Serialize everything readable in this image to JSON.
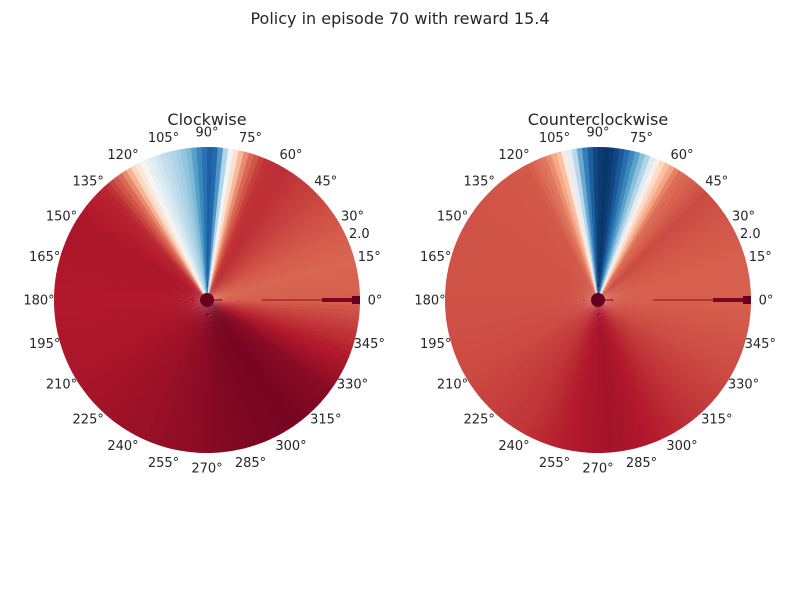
{
  "figure_title": "Policy in episode 70 with reward 15.4",
  "colormap": "RdBu",
  "chart_data": [
    {
      "type": "heatmap",
      "projection": "polar",
      "title": "Clockwise",
      "angular_ticks": [
        "0°",
        "15°",
        "30°",
        "45°",
        "60°",
        "75°",
        "90°",
        "105°",
        "120°",
        "135°",
        "150°",
        "165°",
        "180°",
        "195°",
        "210°",
        "225°",
        "240°",
        "255°",
        "270°",
        "285°",
        "300°",
        "315°",
        "330°",
        "345°"
      ],
      "radial_tick": "2.0",
      "rmax": 2.0,
      "value_range": [
        -1,
        1
      ],
      "angle_values": [
        [
          0,
          -0.6
        ],
        [
          15,
          -0.58
        ],
        [
          30,
          -0.62
        ],
        [
          45,
          -0.68
        ],
        [
          60,
          -0.74
        ],
        [
          68,
          -0.72
        ],
        [
          74,
          -0.55
        ],
        [
          80,
          -0.1
        ],
        [
          83,
          0.3
        ],
        [
          86,
          0.72
        ],
        [
          88,
          0.85
        ],
        [
          90,
          0.8
        ],
        [
          93,
          0.65
        ],
        [
          97,
          0.45
        ],
        [
          102,
          0.32
        ],
        [
          108,
          0.22
        ],
        [
          113,
          0.08
        ],
        [
          118,
          -0.15
        ],
        [
          124,
          -0.55
        ],
        [
          132,
          -0.76
        ],
        [
          150,
          -0.82
        ],
        [
          180,
          -0.8
        ],
        [
          210,
          -0.82
        ],
        [
          240,
          -0.86
        ],
        [
          265,
          -0.9
        ],
        [
          285,
          -0.94
        ],
        [
          305,
          -0.96
        ],
        [
          325,
          -0.9
        ],
        [
          345,
          -0.74
        ],
        [
          360,
          -0.6
        ]
      ]
    },
    {
      "type": "heatmap",
      "projection": "polar",
      "title": "Counterclockwise",
      "angular_ticks": [
        "0°",
        "15°",
        "30°",
        "45°",
        "60°",
        "75°",
        "90°",
        "105°",
        "120°",
        "135°",
        "150°",
        "165°",
        "180°",
        "195°",
        "210°",
        "225°",
        "240°",
        "255°",
        "270°",
        "285°",
        "300°",
        "315°",
        "330°",
        "345°"
      ],
      "radial_tick": "2.0",
      "rmax": 2.0,
      "value_range": [
        -1,
        1
      ],
      "angle_values": [
        [
          0,
          -0.6
        ],
        [
          15,
          -0.6
        ],
        [
          30,
          -0.62
        ],
        [
          45,
          -0.66
        ],
        [
          58,
          -0.55
        ],
        [
          66,
          -0.15
        ],
        [
          71,
          0.3
        ],
        [
          76,
          0.6
        ],
        [
          80,
          0.82
        ],
        [
          84,
          0.95
        ],
        [
          88,
          0.98
        ],
        [
          92,
          0.9
        ],
        [
          96,
          0.62
        ],
        [
          99,
          0.28
        ],
        [
          102,
          0.02
        ],
        [
          105,
          -0.3
        ],
        [
          110,
          -0.52
        ],
        [
          118,
          -0.62
        ],
        [
          150,
          -0.64
        ],
        [
          180,
          -0.64
        ],
        [
          210,
          -0.66
        ],
        [
          240,
          -0.72
        ],
        [
          260,
          -0.8
        ],
        [
          275,
          -0.84
        ],
        [
          290,
          -0.8
        ],
        [
          310,
          -0.72
        ],
        [
          330,
          -0.66
        ],
        [
          360,
          -0.6
        ]
      ]
    }
  ]
}
